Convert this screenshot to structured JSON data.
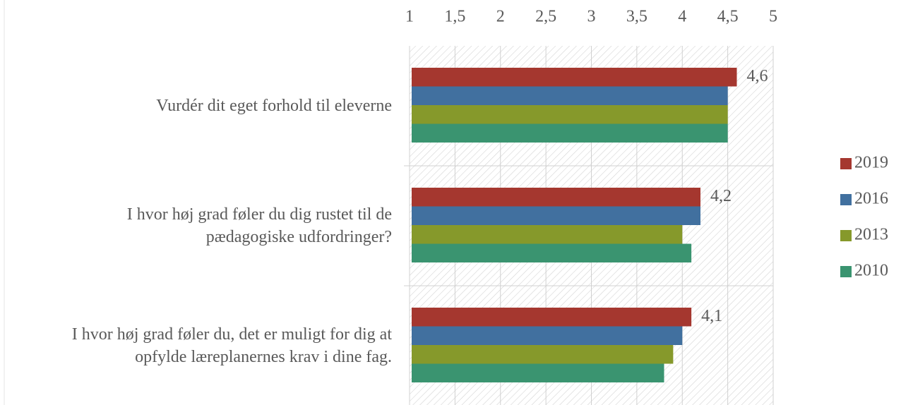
{
  "chart_data": {
    "type": "hbar",
    "categories": [
      "Vurdér dit eget forhold til eleverne",
      "I hvor høj grad føler du dig rustet til de pædagogiske udfordringer?",
      "I hvor høj grad føler du, det er muligt for dig at opfylde læreplanernes krav i dine fag."
    ],
    "series": [
      {
        "name": "2019",
        "color": "#a5372f",
        "values": [
          4.6,
          4.2,
          4.1
        ],
        "value_labels": [
          "4,6",
          "4,2",
          "4,1"
        ]
      },
      {
        "name": "2016",
        "color": "#41709f",
        "values": [
          4.5,
          4.2,
          4.0
        ]
      },
      {
        "name": "2013",
        "color": "#86992b",
        "values": [
          4.5,
          4.0,
          3.9
        ]
      },
      {
        "name": "2010",
        "color": "#3a9470",
        "values": [
          4.5,
          4.1,
          3.8
        ]
      }
    ],
    "xlim": [
      1,
      5
    ],
    "xticks": [
      1,
      {
        "value": 1.5,
        "label": "1,5"
      },
      2,
      {
        "value": 2.5,
        "label": "2,5"
      },
      3,
      {
        "value": 3.5,
        "label": "3,5"
      },
      4,
      {
        "value": 4.5,
        "label": "4,5"
      },
      5
    ],
    "grid": true,
    "legend": "right"
  }
}
